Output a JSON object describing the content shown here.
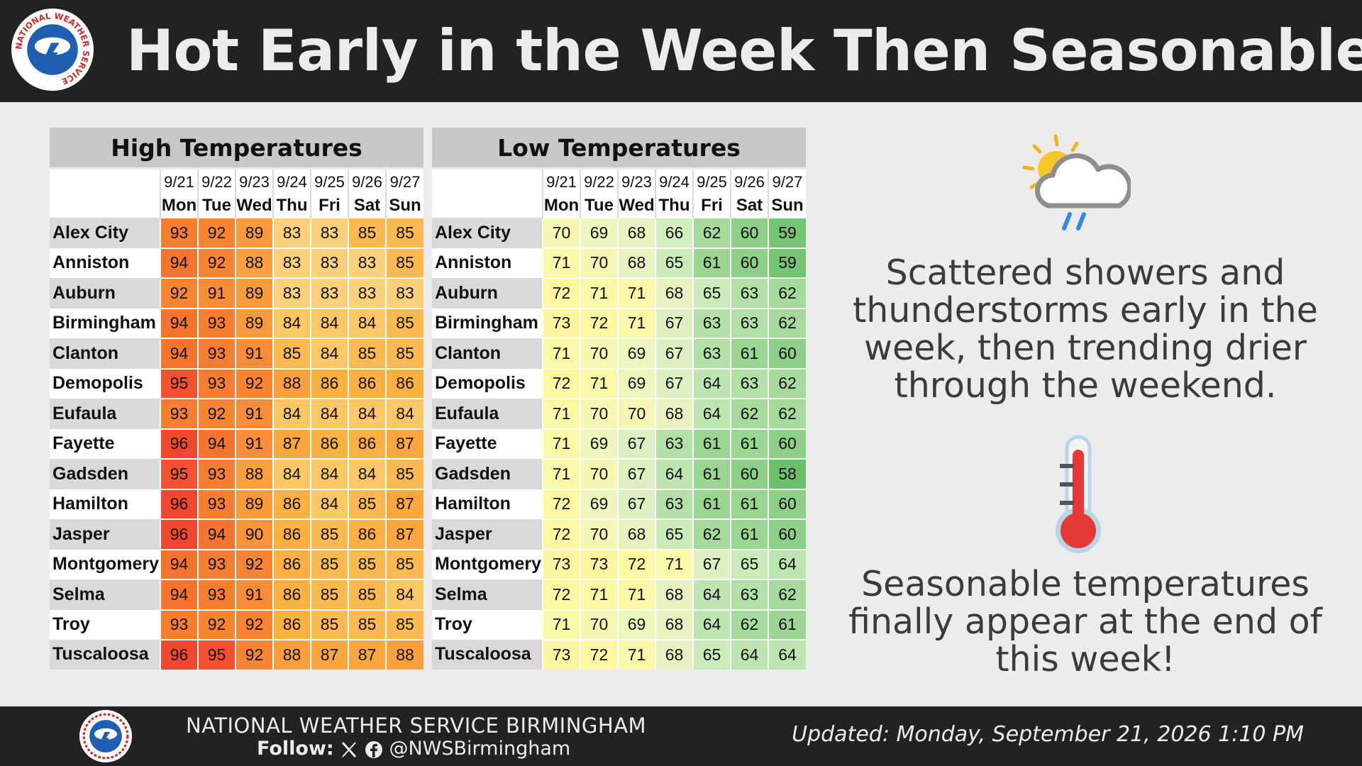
{
  "header": {
    "title": "Hot Early in the Week Then Seasonable",
    "logo_text": "NATIONAL WEATHER SERVICE"
  },
  "high_table": {
    "title": "High Temperatures",
    "dates": [
      "9/21",
      "9/22",
      "9/23",
      "9/24",
      "9/25",
      "9/26",
      "9/27"
    ],
    "days": [
      "Mon",
      "Tue",
      "Wed",
      "Thu",
      "Fri",
      "Sat",
      "Sun"
    ],
    "rows": [
      {
        "city": "Alex City",
        "values": [
          93,
          92,
          89,
          83,
          83,
          85,
          85
        ]
      },
      {
        "city": "Anniston",
        "values": [
          94,
          92,
          88,
          83,
          83,
          83,
          85
        ]
      },
      {
        "city": "Auburn",
        "values": [
          92,
          91,
          89,
          83,
          83,
          83,
          83
        ]
      },
      {
        "city": "Birmingham",
        "values": [
          94,
          93,
          89,
          84,
          84,
          84,
          85
        ]
      },
      {
        "city": "Clanton",
        "values": [
          94,
          93,
          91,
          85,
          84,
          85,
          85
        ]
      },
      {
        "city": "Demopolis",
        "values": [
          95,
          93,
          92,
          88,
          86,
          86,
          86
        ]
      },
      {
        "city": "Eufaula",
        "values": [
          93,
          92,
          91,
          84,
          84,
          84,
          84
        ]
      },
      {
        "city": "Fayette",
        "values": [
          96,
          94,
          91,
          87,
          86,
          86,
          87
        ]
      },
      {
        "city": "Gadsden",
        "values": [
          95,
          93,
          88,
          84,
          84,
          84,
          85
        ]
      },
      {
        "city": "Hamilton",
        "values": [
          96,
          93,
          89,
          86,
          84,
          85,
          87
        ]
      },
      {
        "city": "Jasper",
        "values": [
          96,
          94,
          90,
          86,
          85,
          86,
          87
        ]
      },
      {
        "city": "Montgomery",
        "values": [
          94,
          93,
          92,
          86,
          85,
          85,
          85
        ]
      },
      {
        "city": "Selma",
        "values": [
          94,
          93,
          91,
          86,
          85,
          85,
          84
        ]
      },
      {
        "city": "Troy",
        "values": [
          93,
          92,
          92,
          86,
          85,
          85,
          85
        ]
      },
      {
        "city": "Tuscaloosa",
        "values": [
          96,
          95,
          92,
          88,
          87,
          87,
          88
        ]
      }
    ]
  },
  "low_table": {
    "title": "Low Temperatures",
    "dates": [
      "9/21",
      "9/22",
      "9/23",
      "9/24",
      "9/25",
      "9/26",
      "9/27"
    ],
    "days": [
      "Mon",
      "Tue",
      "Wed",
      "Thu",
      "Fri",
      "Sat",
      "Sun"
    ],
    "rows": [
      {
        "city": "Alex City",
        "values": [
          70,
          69,
          68,
          66,
          62,
          60,
          59
        ]
      },
      {
        "city": "Anniston",
        "values": [
          71,
          70,
          68,
          65,
          61,
          60,
          59
        ]
      },
      {
        "city": "Auburn",
        "values": [
          72,
          71,
          71,
          68,
          65,
          63,
          62
        ]
      },
      {
        "city": "Birmingham",
        "values": [
          73,
          72,
          71,
          67,
          63,
          63,
          62
        ]
      },
      {
        "city": "Clanton",
        "values": [
          71,
          70,
          69,
          67,
          63,
          61,
          60
        ]
      },
      {
        "city": "Demopolis",
        "values": [
          72,
          71,
          69,
          67,
          64,
          63,
          62
        ]
      },
      {
        "city": "Eufaula",
        "values": [
          71,
          70,
          70,
          68,
          64,
          62,
          62
        ]
      },
      {
        "city": "Fayette",
        "values": [
          71,
          69,
          67,
          63,
          61,
          61,
          60
        ]
      },
      {
        "city": "Gadsden",
        "values": [
          71,
          70,
          67,
          64,
          61,
          60,
          58
        ]
      },
      {
        "city": "Hamilton",
        "values": [
          72,
          69,
          67,
          63,
          61,
          61,
          60
        ]
      },
      {
        "city": "Jasper",
        "values": [
          72,
          70,
          68,
          65,
          62,
          61,
          60
        ]
      },
      {
        "city": "Montgomery",
        "values": [
          73,
          73,
          72,
          71,
          67,
          65,
          64
        ]
      },
      {
        "city": "Selma",
        "values": [
          72,
          71,
          71,
          68,
          64,
          63,
          62
        ]
      },
      {
        "city": "Troy",
        "values": [
          71,
          70,
          69,
          68,
          64,
          62,
          61
        ]
      },
      {
        "city": "Tuscaloosa",
        "values": [
          73,
          72,
          71,
          68,
          65,
          64,
          64
        ]
      }
    ]
  },
  "colors": {
    "header_bg": "#222222",
    "page_bg": "#ececec",
    "high_scale": {
      "83": "#fdd17c",
      "84": "#fdc765",
      "85": "#fcb950",
      "86": "#fcb042",
      "87": "#fba73e",
      "88": "#fba03c",
      "89": "#fb9a3a",
      "90": "#fa9438",
      "91": "#f98c36",
      "92": "#f98533",
      "93": "#f77d30",
      "94": "#f6742d",
      "95": "#f3512f",
      "96": "#f2472f"
    },
    "low_scale": {
      "58": "#6cc06c",
      "59": "#76c473",
      "60": "#8ecf88",
      "61": "#9ad592",
      "62": "#a6da9c",
      "63": "#b2e0a6",
      "64": "#bde5b0",
      "65": "#cbecba",
      "66": "#d4efbf",
      "67": "#deefc1",
      "68": "#e8f2c0",
      "69": "#eef5bd",
      "70": "#f6f7b4",
      "71": "#fbf8a8",
      "72": "#fef8a2",
      "73": "#fef6a0"
    }
  },
  "icons": {
    "weather_icon": "partly-sunny-rain-icon",
    "temperature_icon": "thermometer-icon"
  },
  "messages": {
    "showers": "Scattered showers and thunderstorms early in the week, then trending drier through the weekend.",
    "temperatures": "Seasonable temperatures finally appear at the end of this week!"
  },
  "footer": {
    "office": "NATIONAL WEATHER SERVICE BIRMINGHAM",
    "follow_label": "Follow:",
    "handle": "@NWSBirmingham",
    "updated": "Updated:  Monday, September 21, 2026 1:10 PM"
  }
}
